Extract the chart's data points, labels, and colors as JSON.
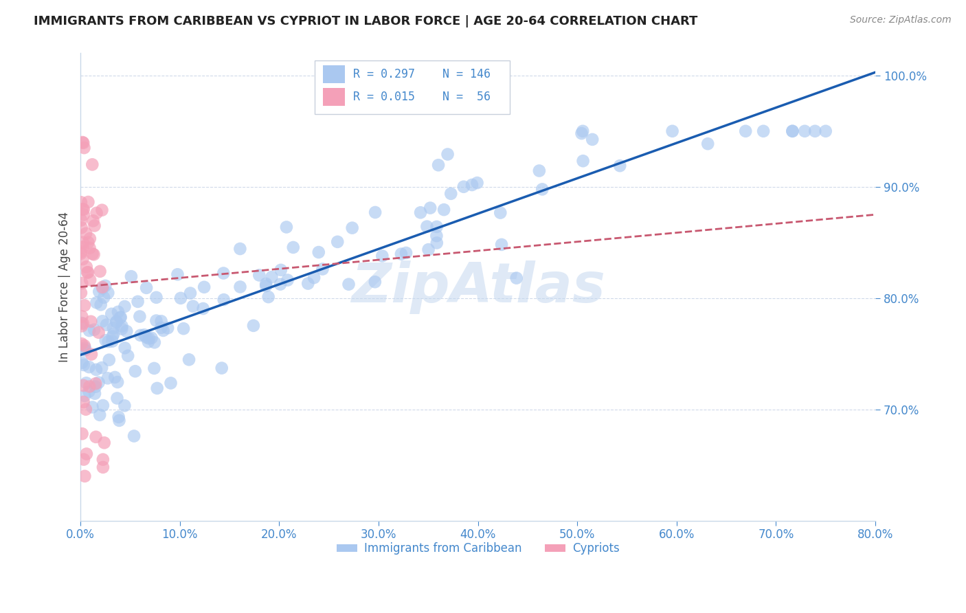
{
  "title": "IMMIGRANTS FROM CARIBBEAN VS CYPRIOT IN LABOR FORCE | AGE 20-64 CORRELATION CHART",
  "source": "Source: ZipAtlas.com",
  "ylabel": "In Labor Force | Age 20-64",
  "watermark": "ZipAtlas",
  "legend_label1": "Immigrants from Caribbean",
  "legend_label2": "Cypriots",
  "R1": 0.297,
  "N1": 146,
  "R2": 0.015,
  "N2": 56,
  "xlim": [
    0.0,
    0.8
  ],
  "ylim": [
    0.6,
    1.02
  ],
  "yticks": [
    0.7,
    0.8,
    0.9,
    1.0
  ],
  "xticks": [
    0.0,
    0.1,
    0.2,
    0.3,
    0.4,
    0.5,
    0.6,
    0.7,
    0.8
  ],
  "color_caribbean": "#aac8f0",
  "color_cypriot": "#f4a0b8",
  "color_line1": "#1a5cb0",
  "color_line2": "#c85870",
  "color_axis_ticks": "#4488cc",
  "title_color": "#222222",
  "source_color": "#888888",
  "background_color": "#ffffff",
  "watermark_color": "#c5d8ef",
  "grid_color": "#d0daea",
  "legend_edge_color": "#c8d0dc"
}
